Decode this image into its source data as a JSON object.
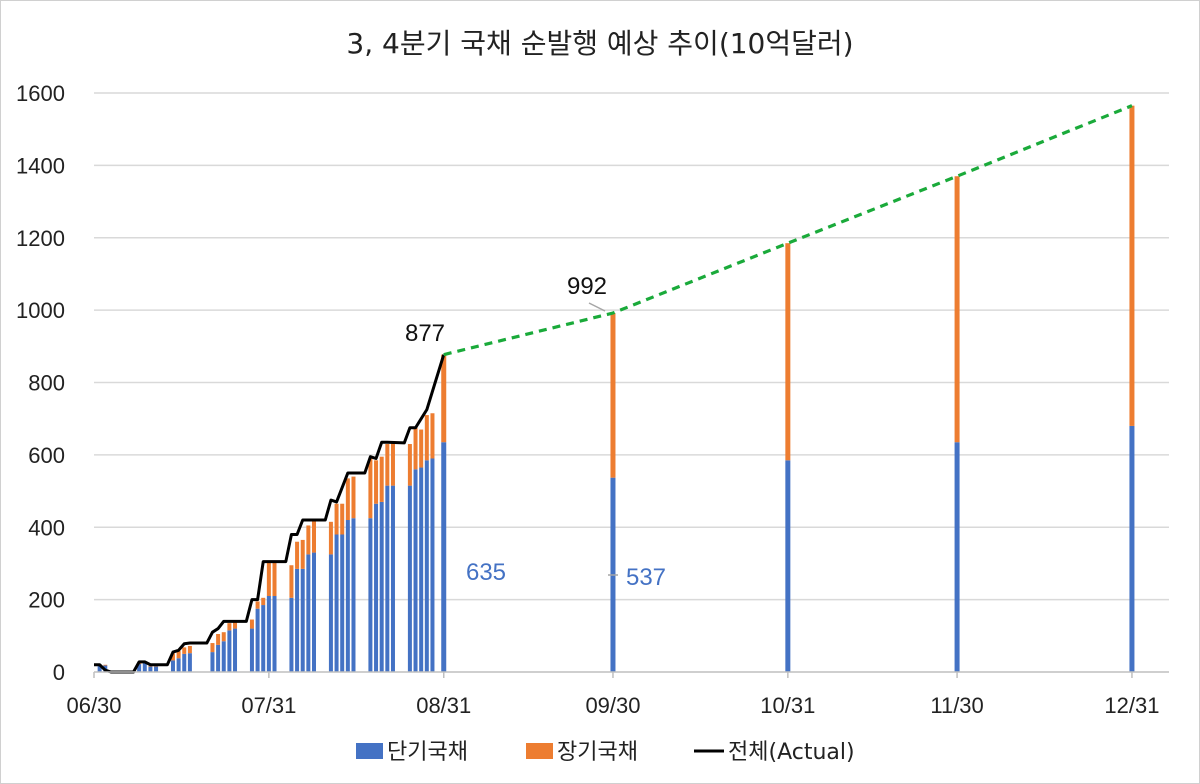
{
  "chart_data": {
    "type": "bar",
    "title": "3, 4분기 국채 순발행 예상 추이(10억달러)",
    "xlabel": "",
    "ylabel": "",
    "ylim": [
      0,
      1600
    ],
    "y_ticks": [
      "0",
      "200",
      "400",
      "600",
      "800",
      "1000",
      "1200",
      "1400",
      "1600"
    ],
    "x_tick_labels": [
      "06/30",
      "07/31",
      "08/31",
      "09/30",
      "10/31",
      "11/30",
      "12/31"
    ],
    "grid": "horizontal",
    "legend": "bottom",
    "stacked": true,
    "x_unit": "days since 06/30",
    "series_names": [
      "단기국채",
      "장기국채",
      "전체(Actual)"
    ],
    "colors": {
      "short": "#4472C4",
      "long": "#ED7D31",
      "actual": "#000000",
      "projection": "#1AAA3A"
    },
    "daily_bars": {
      "x": [
        1,
        2,
        8,
        9,
        10,
        11,
        14,
        15,
        16,
        17,
        21,
        22,
        23,
        24,
        25,
        28,
        29,
        30,
        31,
        32,
        35,
        36,
        37,
        38,
        39,
        42,
        43,
        44,
        45,
        46,
        49,
        50,
        51,
        52,
        53,
        56,
        57,
        58,
        59,
        60
      ],
      "short": [
        18,
        18,
        22,
        25,
        15,
        15,
        32,
        38,
        50,
        52,
        55,
        75,
        85,
        115,
        120,
        120,
        175,
        185,
        210,
        210,
        205,
        285,
        285,
        325,
        330,
        325,
        380,
        380,
        420,
        425,
        425,
        465,
        470,
        515,
        515,
        515,
        560,
        565,
        585,
        590
      ],
      "long": [
        2,
        2,
        3,
        3,
        2,
        2,
        20,
        20,
        18,
        20,
        25,
        30,
        25,
        20,
        20,
        25,
        20,
        20,
        95,
        95,
        90,
        75,
        80,
        80,
        90,
        90,
        85,
        85,
        115,
        115,
        165,
        120,
        125,
        115,
        120,
        115,
        115,
        105,
        125,
        125
      ]
    },
    "actual_line": {
      "x": [
        0,
        1,
        2,
        3,
        7,
        8,
        9,
        10,
        13,
        14,
        15,
        16,
        17,
        20,
        21,
        22,
        23,
        24,
        27,
        28,
        29,
        30,
        31,
        34,
        35,
        36,
        37,
        38,
        41,
        42,
        43,
        44,
        45,
        48,
        49,
        50,
        51,
        52,
        55,
        56,
        57,
        58,
        59,
        62
      ],
      "y": [
        20,
        20,
        5,
        0,
        0,
        28,
        28,
        20,
        20,
        55,
        60,
        78,
        80,
        80,
        110,
        120,
        140,
        140,
        140,
        200,
        200,
        305,
        305,
        305,
        380,
        380,
        420,
        420,
        420,
        475,
        470,
        510,
        550,
        550,
        595,
        590,
        635,
        635,
        633,
        675,
        675,
        700,
        725,
        877
      ]
    },
    "projection": {
      "x": [
        62,
        92,
        123,
        153,
        184
      ],
      "total": [
        877,
        992,
        1185,
        1370,
        1565
      ],
      "short": [
        635,
        537,
        585,
        635,
        680
      ]
    },
    "labels": {
      "total_aug": "877",
      "total_sep": "992",
      "short_aug": "635",
      "short_sep": "537"
    }
  }
}
